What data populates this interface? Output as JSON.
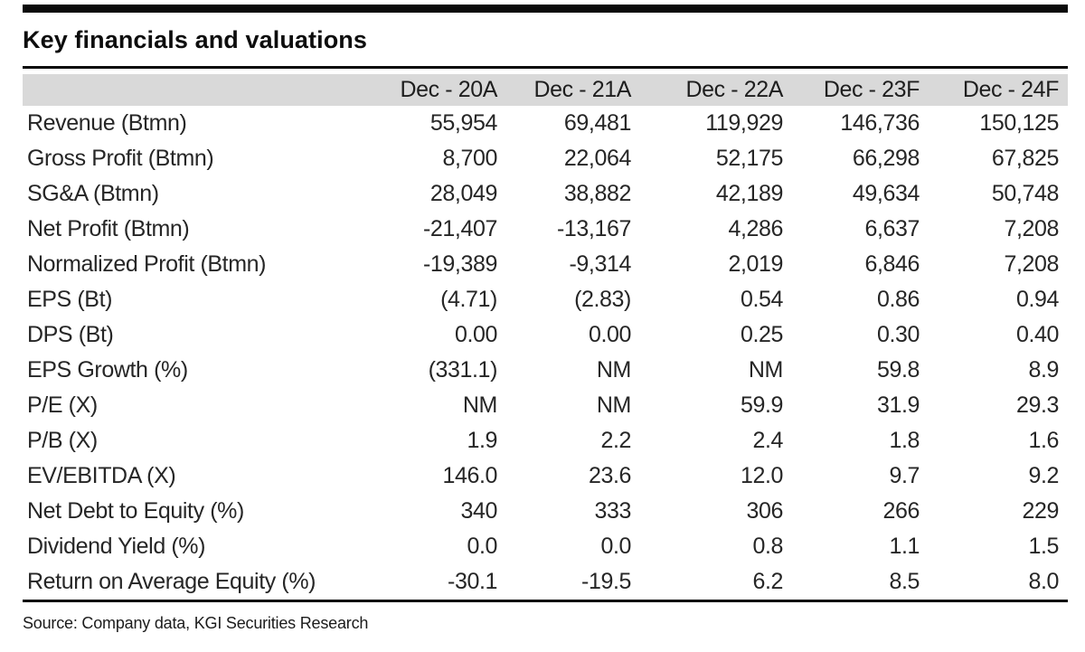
{
  "title": "Key financials and valuations",
  "colors": {
    "header_bg": "#d9d9d9",
    "rule_color": "#0a0a0a"
  },
  "table": {
    "columns": [
      "",
      "Dec - 20A",
      "Dec - 21A",
      "Dec - 22A",
      "Dec - 23F",
      "Dec - 24F"
    ],
    "rows": [
      {
        "label": "Revenue (Btmn)",
        "values": [
          "55,954",
          "69,481",
          "119,929",
          "146,736",
          "150,125"
        ]
      },
      {
        "label": "Gross Profit (Btmn)",
        "values": [
          "8,700",
          "22,064",
          "52,175",
          "66,298",
          "67,825"
        ]
      },
      {
        "label": "SG&A (Btmn)",
        "values": [
          "28,049",
          "38,882",
          "42,189",
          "49,634",
          "50,748"
        ]
      },
      {
        "label": "Net Profit (Btmn)",
        "values": [
          "-21,407",
          "-13,167",
          "4,286",
          "6,637",
          "7,208"
        ]
      },
      {
        "label": "Normalized Profit (Btmn)",
        "values": [
          "-19,389",
          "-9,314",
          "2,019",
          "6,846",
          "7,208"
        ]
      },
      {
        "label": "EPS (Bt)",
        "values": [
          "(4.71)",
          "(2.83)",
          "0.54",
          "0.86",
          "0.94"
        ]
      },
      {
        "label": "DPS (Bt)",
        "values": [
          "0.00",
          "0.00",
          "0.25",
          "0.30",
          "0.40"
        ]
      },
      {
        "label": "EPS Growth (%)",
        "values": [
          "(331.1)",
          "NM",
          "NM",
          "59.8",
          "8.9"
        ]
      },
      {
        "label": "P/E (X)",
        "values": [
          "NM",
          "NM",
          "59.9",
          "31.9",
          "29.3"
        ]
      },
      {
        "label": "P/B (X)",
        "values": [
          "1.9",
          "2.2",
          "2.4",
          "1.8",
          "1.6"
        ]
      },
      {
        "label": "EV/EBITDA (X)",
        "values": [
          "146.0",
          "23.6",
          "12.0",
          "9.7",
          "9.2"
        ]
      },
      {
        "label": "Net Debt to Equity (%)",
        "values": [
          "340",
          "333",
          "306",
          "266",
          "229"
        ]
      },
      {
        "label": "Dividend Yield (%)",
        "values": [
          "0.0",
          "0.0",
          "0.8",
          "1.1",
          "1.5"
        ]
      },
      {
        "label": "Return on Average Equity (%)",
        "values": [
          "-30.1",
          "-19.5",
          "6.2",
          "8.5",
          "8.0"
        ]
      }
    ]
  },
  "source": "Source: Company data, KGI Securities Research"
}
